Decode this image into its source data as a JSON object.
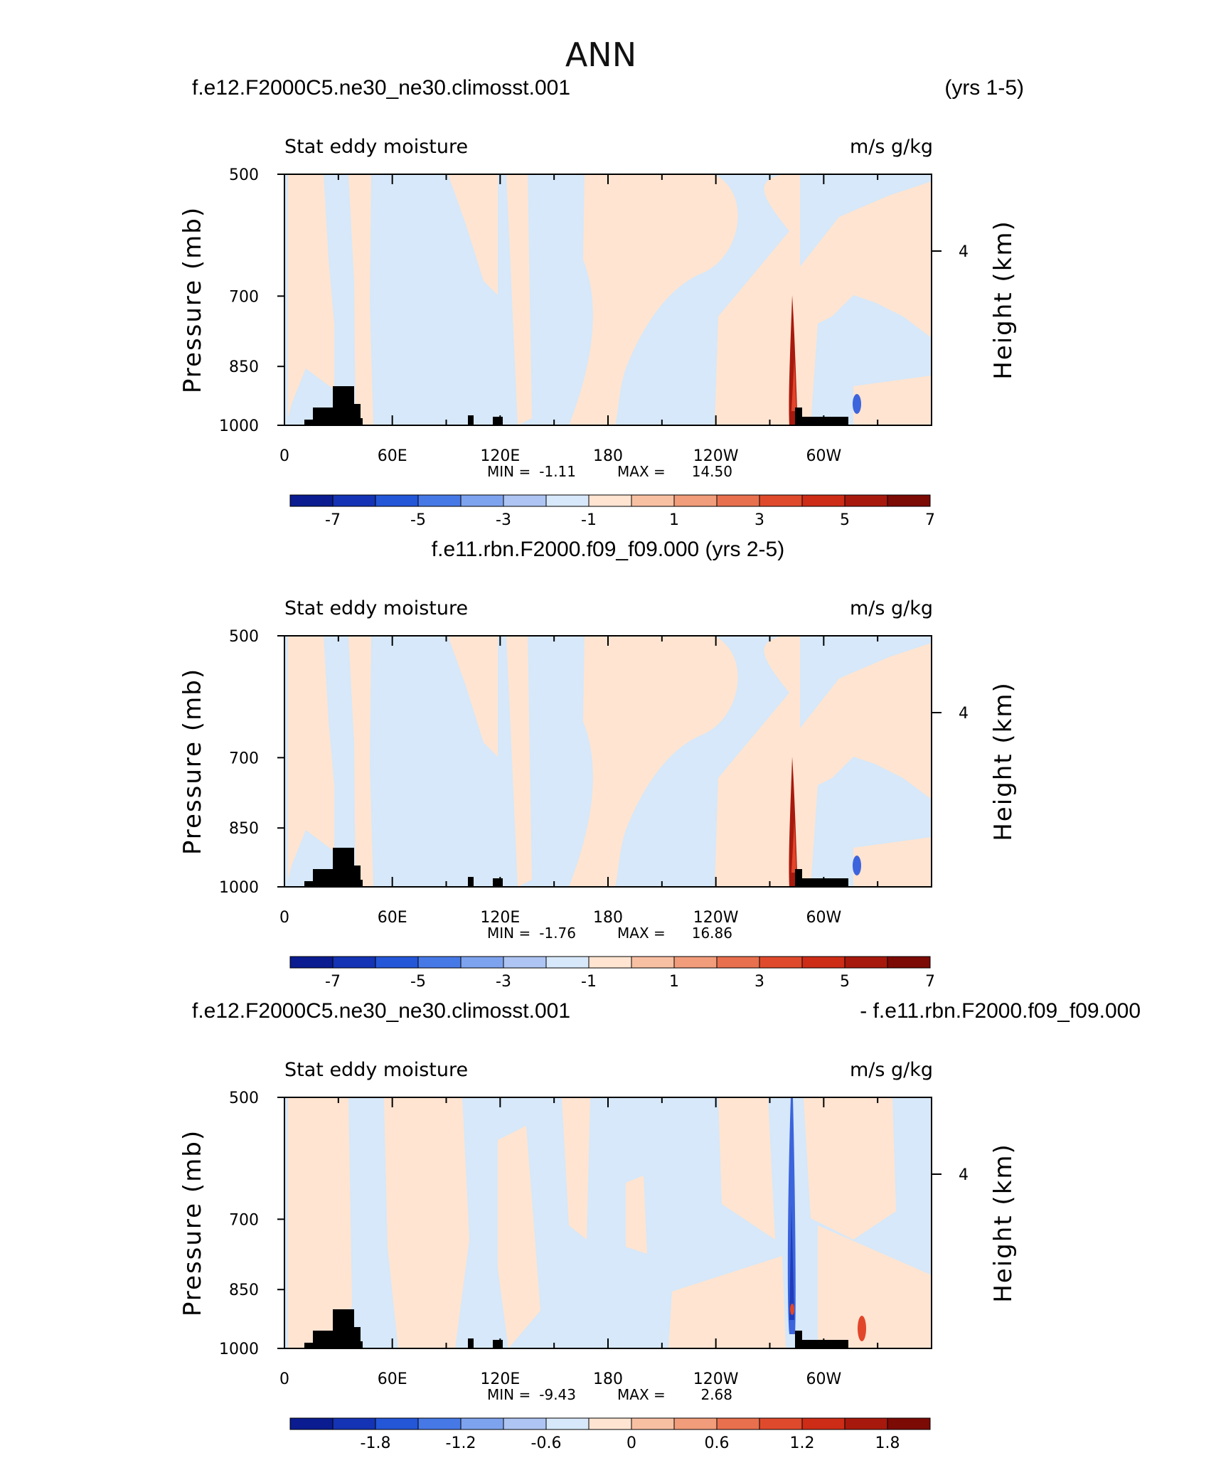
{
  "figure_title": "ANN",
  "colors": {
    "lightblue": "#d6e8f9",
    "peach": "#ffe4d1",
    "red_dark": "#a8190d",
    "red_mid": "#e2462a",
    "blue_mid": "#3c64dc",
    "blue_dark": "#1e3cbc",
    "mask": "#000000",
    "colorbar": [
      "#0a1c90",
      "#1433b5",
      "#2456d8",
      "#4779e6",
      "#7ea3ee",
      "#aec5f3",
      "#d6e8f9",
      "#ffe4d1",
      "#f8c0a3",
      "#f19c7a",
      "#e8704e",
      "#df4a2c",
      "#cd2c17",
      "#a8190d",
      "#7c0a05"
    ]
  },
  "chart_data": [
    {
      "type": "heatmap",
      "title_left": "f.e12.F2000C5.ne30_ne30.climosst.001",
      "title_right": "(yrs 1-5)",
      "title_center": "",
      "subtitle_left": "Stat eddy moisture",
      "subtitle_right": "m/s g/kg",
      "ylabel": "Pressure (mb)",
      "ylabel_right": "Height (km)",
      "yticks": [
        "500",
        "700",
        "850",
        "1000"
      ],
      "yticks_right": [
        "4"
      ],
      "xticks": [
        "0",
        "60E",
        "120E",
        "180",
        "120W",
        "60W"
      ],
      "min_label": "MIN =",
      "min_value": "-1.11",
      "max_label": "MAX =",
      "max_value": "14.50",
      "colorbar_labels": [
        "-7",
        "-5",
        "-3",
        "-1",
        "1",
        "3",
        "5",
        "7"
      ],
      "variant": "abs"
    },
    {
      "type": "heatmap",
      "title_left": "",
      "title_right": "",
      "title_center": "f.e11.rbn.F2000.f09_f09.000 (yrs 2-5)",
      "subtitle_left": "Stat eddy moisture",
      "subtitle_right": "m/s g/kg",
      "ylabel": "Pressure (mb)",
      "ylabel_right": "Height (km)",
      "yticks": [
        "500",
        "700",
        "850",
        "1000"
      ],
      "yticks_right": [
        "4"
      ],
      "xticks": [
        "0",
        "60E",
        "120E",
        "180",
        "120W",
        "60W"
      ],
      "min_label": "MIN =",
      "min_value": "-1.76",
      "max_label": "MAX =",
      "max_value": "16.86",
      "colorbar_labels": [
        "-7",
        "-5",
        "-3",
        "-1",
        "1",
        "3",
        "5",
        "7"
      ],
      "variant": "abs"
    },
    {
      "type": "heatmap",
      "title_left": "f.e12.F2000C5.ne30_ne30.climosst.001",
      "title_right": "- f.e11.rbn.F2000.f09_f09.000",
      "title_center": "",
      "subtitle_left": "Stat eddy moisture",
      "subtitle_right": "m/s g/kg",
      "ylabel": "Pressure (mb)",
      "ylabel_right": "Height (km)",
      "yticks": [
        "500",
        "700",
        "850",
        "1000"
      ],
      "yticks_right": [
        "4"
      ],
      "xticks": [
        "0",
        "60E",
        "120E",
        "180",
        "120W",
        "60W"
      ],
      "min_label": "MIN =",
      "min_value": "-9.43",
      "max_label": "MAX =",
      "max_value": "2.68",
      "colorbar_labels": [
        "-1.8",
        "-1.2",
        "-0.6",
        "0",
        "0.6",
        "1.2",
        "1.8"
      ],
      "variant": "diff"
    }
  ]
}
